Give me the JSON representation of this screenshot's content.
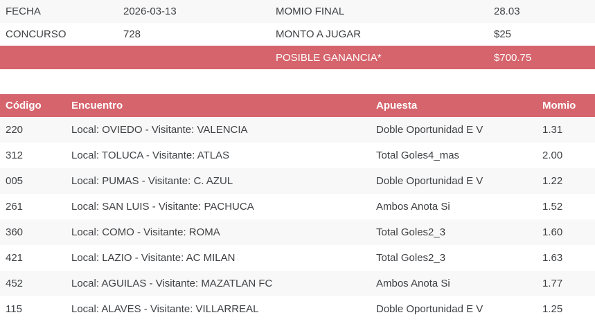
{
  "colors": {
    "accent": "#d6646c",
    "stripe": "#f8f8f8",
    "text": "#3f4144",
    "highlight_text": "#ffffff"
  },
  "summary": {
    "fecha_label": "FECHA",
    "fecha_value": "2026-03-13",
    "momio_final_label": "MOMIO FINAL",
    "momio_final_value": "28.03",
    "concurso_label": "CONCURSO",
    "concurso_value": "728",
    "monto_label": "MONTO A JUGAR",
    "monto_value": "$25",
    "ganancia_label": "POSIBLE GANANCIA*",
    "ganancia_value": "$700.75"
  },
  "bets": {
    "headers": {
      "codigo": "Código",
      "encuentro": "Encuentro",
      "apuesta": "Apuesta",
      "momio": "Momio"
    },
    "rows": [
      {
        "codigo": "220",
        "encuentro": "Local: OVIEDO - Visitante: VALENCIA",
        "apuesta": "Doble Oportunidad E V",
        "momio": "1.31"
      },
      {
        "codigo": "312",
        "encuentro": "Local: TOLUCA - Visitante: ATLAS",
        "apuesta": "Total Goles4_mas",
        "momio": "2.00"
      },
      {
        "codigo": "005",
        "encuentro": "Local: PUMAS - Visitante: C. AZUL",
        "apuesta": "Doble Oportunidad E V",
        "momio": "1.22"
      },
      {
        "codigo": "261",
        "encuentro": "Local: SAN LUIS - Visitante: PACHUCA",
        "apuesta": "Ambos Anota Si",
        "momio": "1.52"
      },
      {
        "codigo": "360",
        "encuentro": "Local: COMO - Visitante: ROMA",
        "apuesta": "Total Goles2_3",
        "momio": "1.60"
      },
      {
        "codigo": "421",
        "encuentro": "Local: LAZIO - Visitante: AC MILAN",
        "apuesta": "Total Goles2_3",
        "momio": "1.63"
      },
      {
        "codigo": "452",
        "encuentro": "Local: AGUILAS - Visitante: MAZATLAN FC",
        "apuesta": "Ambos Anota Si",
        "momio": "1.77"
      },
      {
        "codigo": "115",
        "encuentro": "Local: ALAVES - Visitante: VILLARREAL",
        "apuesta": "Doble Oportunidad E V",
        "momio": "1.25"
      }
    ]
  }
}
